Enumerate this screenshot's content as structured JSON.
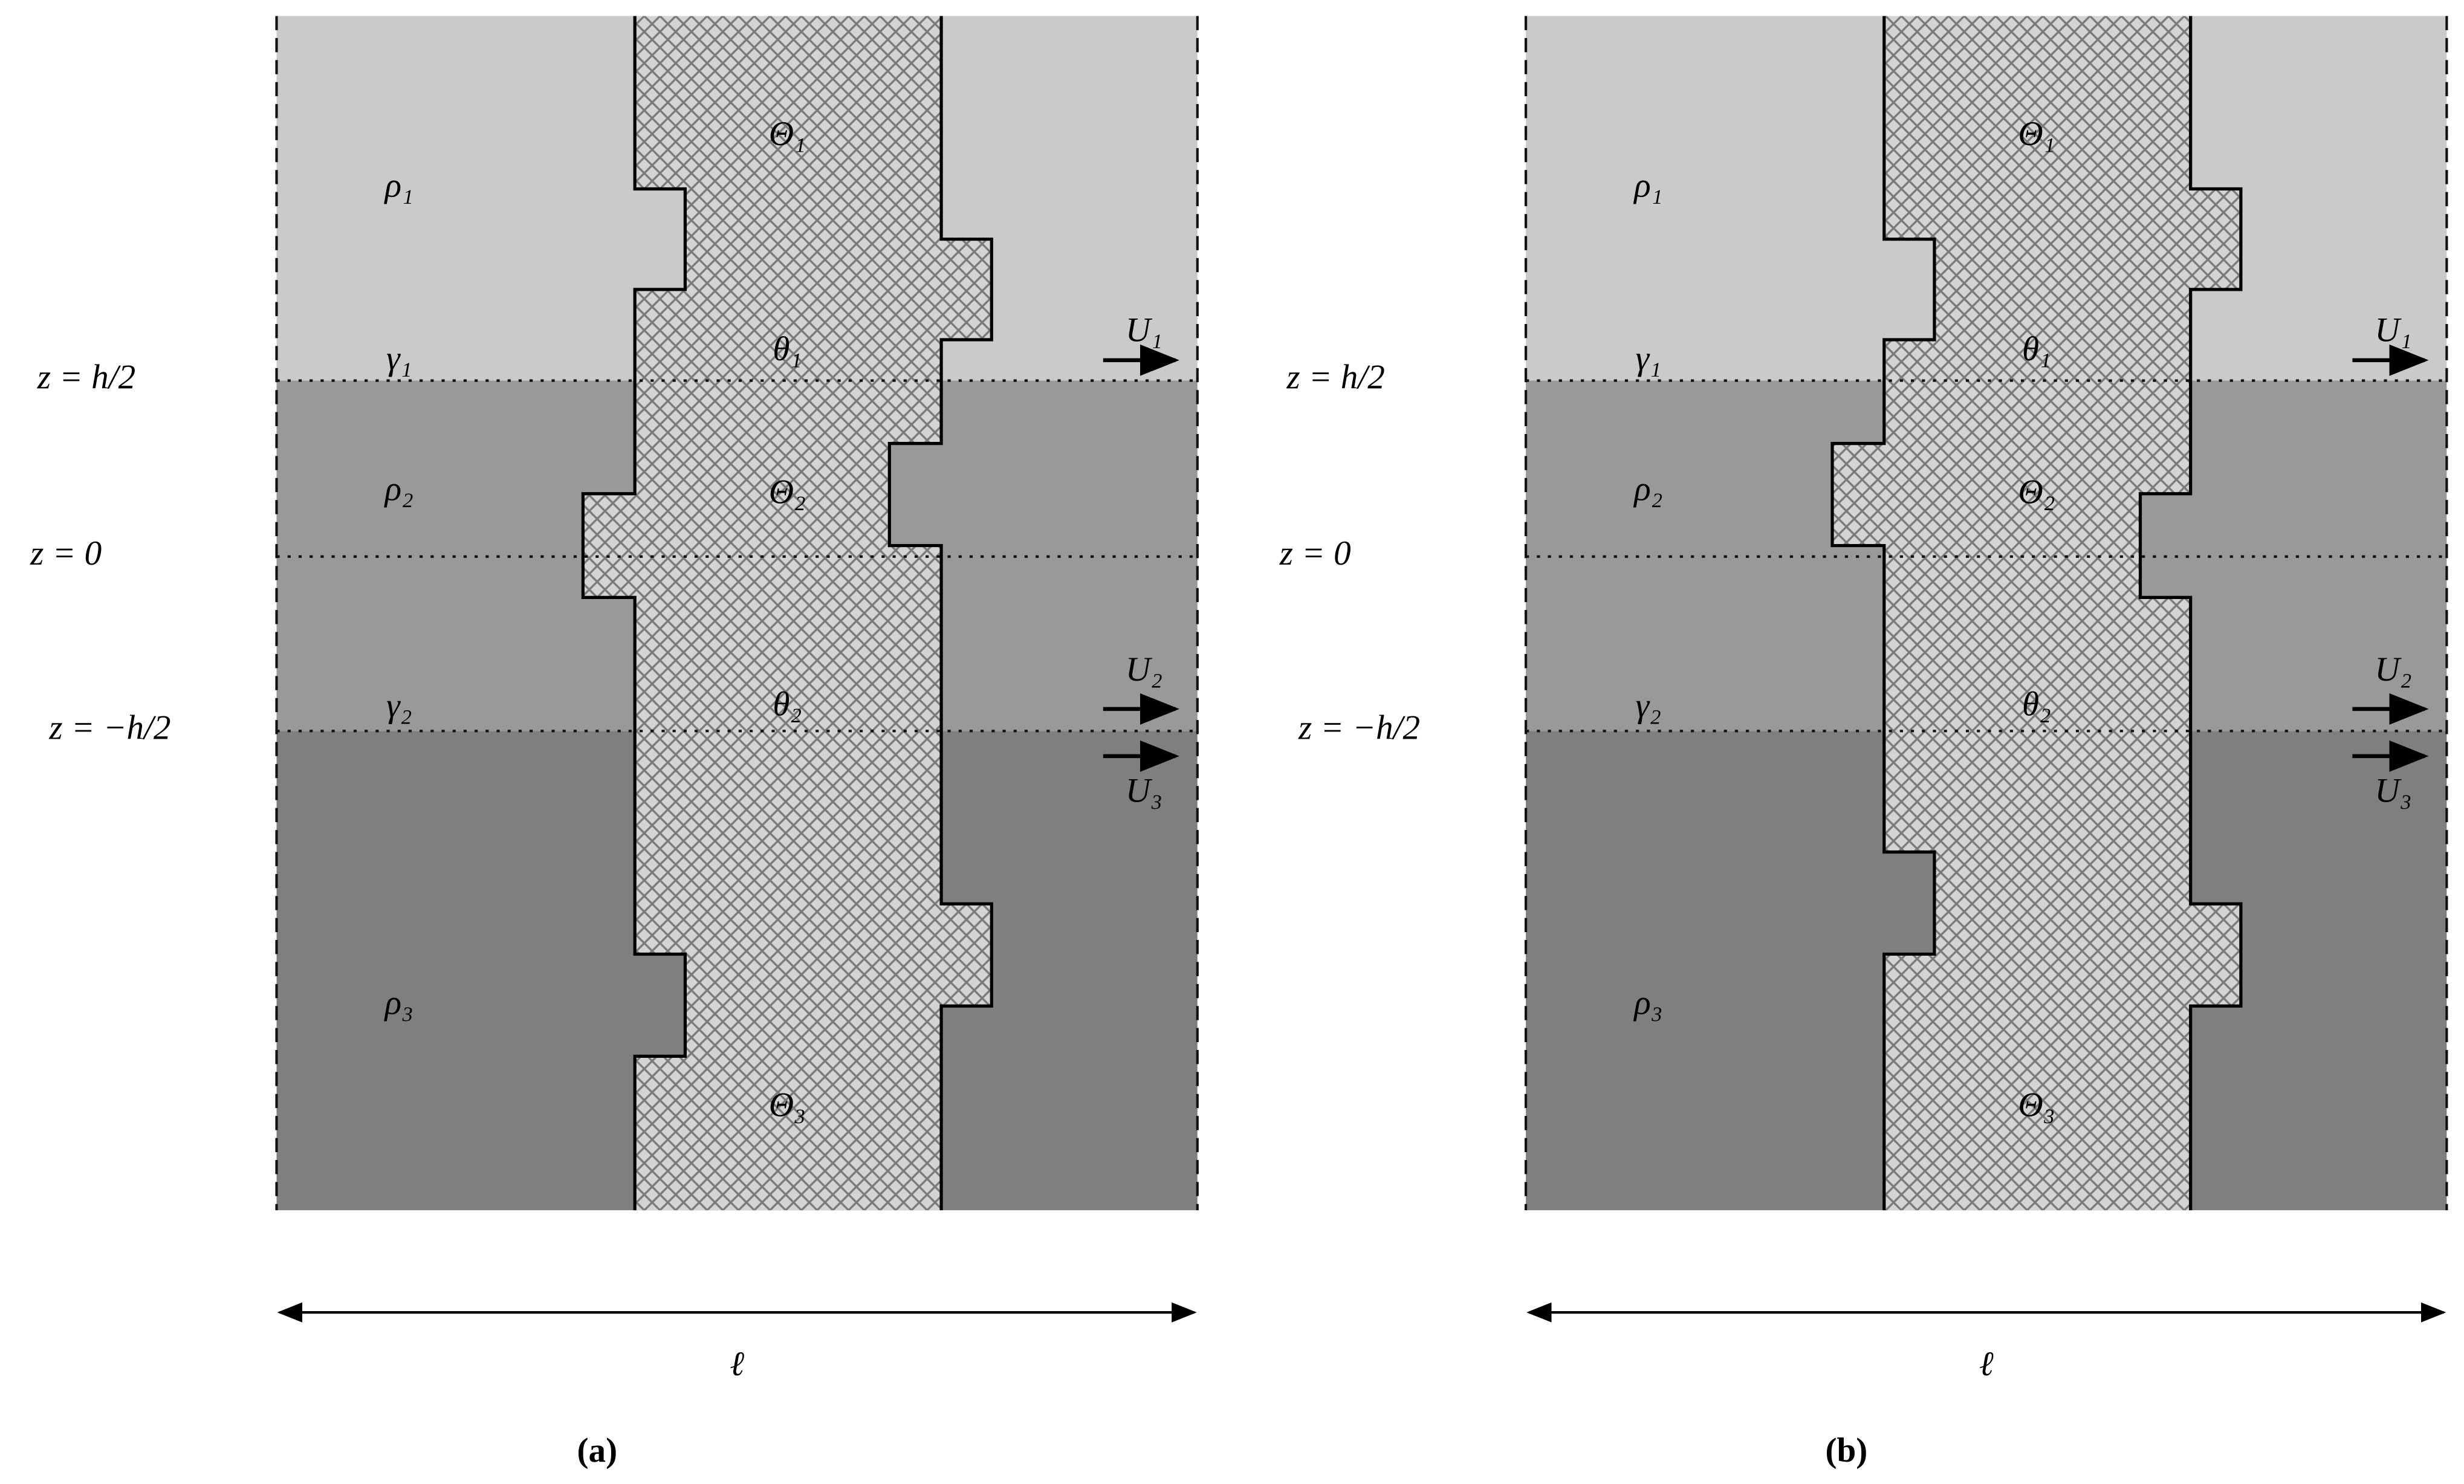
{
  "panels": [
    {
      "caption": "(a)",
      "densities": [
        "ρ₁",
        "ρ₂",
        "ρ₃"
      ],
      "surface_tensions": [
        "γ₁",
        "γ₂"
      ],
      "layer_angles": [
        "Θ₁",
        "Θ₂",
        "Θ₃"
      ],
      "interface_angles": [
        "θ₁",
        "θ₂"
      ],
      "velocities": [
        "U₁",
        "U₂",
        "U₃"
      ],
      "z_levels": [
        "z = h/2",
        "z = 0",
        "z = −h/2"
      ],
      "width": "ℓ"
    },
    {
      "caption": "(b)",
      "densities": [
        "ρ₁",
        "ρ₂",
        "ρ₃"
      ],
      "surface_tensions": [
        "γ₁",
        "γ₂"
      ],
      "layer_angles": [
        "Θ₁",
        "Θ₂",
        "Θ₃"
      ],
      "interface_angles": [
        "θ₁",
        "θ₂"
      ],
      "velocities": [
        "U₁",
        "U₂",
        "U₃"
      ],
      "z_levels": [
        "z = h/2",
        "z = 0",
        "z = −h/2"
      ],
      "width": "ℓ"
    }
  ]
}
